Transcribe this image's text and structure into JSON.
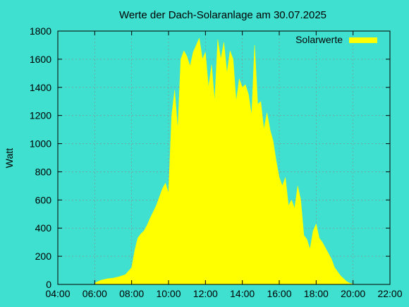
{
  "chart_data": {
    "type": "area",
    "title": "Werte der Dach-Solaranlage am 30.07.2025",
    "xlabel": "",
    "ylabel": "Watt",
    "xlim": [
      "04:00",
      "22:00"
    ],
    "ylim": [
      0,
      1800
    ],
    "x_ticks": [
      "04:00",
      "06:00",
      "08:00",
      "10:00",
      "12:00",
      "14:00",
      "16:00",
      "18:00",
      "20:00",
      "22:00"
    ],
    "y_ticks": [
      0,
      200,
      400,
      600,
      800,
      1000,
      1200,
      1400,
      1600,
      1800
    ],
    "grid": true,
    "legend_position": "top-right",
    "colors": {
      "background": "#40E0D0",
      "series": "#FFFF00",
      "frame": "#000000"
    },
    "series": [
      {
        "name": "Solarwerte",
        "x": [
          "06:00",
          "06:20",
          "06:40",
          "07:00",
          "07:20",
          "07:40",
          "08:00",
          "08:10",
          "08:20",
          "08:30",
          "08:40",
          "08:50",
          "09:00",
          "09:20",
          "09:40",
          "09:50",
          "10:00",
          "10:10",
          "10:20",
          "10:30",
          "10:40",
          "10:50",
          "11:00",
          "11:10",
          "11:20",
          "11:30",
          "11:40",
          "11:50",
          "12:00",
          "12:10",
          "12:20",
          "12:30",
          "12:40",
          "12:50",
          "13:00",
          "13:10",
          "13:20",
          "13:30",
          "13:40",
          "13:50",
          "14:00",
          "14:10",
          "14:20",
          "14:30",
          "14:40",
          "14:50",
          "15:00",
          "15:10",
          "15:20",
          "15:30",
          "15:40",
          "15:50",
          "16:00",
          "16:10",
          "16:20",
          "16:30",
          "16:40",
          "16:50",
          "17:00",
          "17:10",
          "17:20",
          "17:30",
          "17:40",
          "17:50",
          "18:00",
          "18:10",
          "18:20",
          "18:30",
          "18:40",
          "18:50",
          "19:00",
          "19:10",
          "19:20",
          "19:30",
          "19:40",
          "19:50",
          "20:00",
          "20:10"
        ],
        "values": [
          10,
          30,
          40,
          45,
          55,
          70,
          120,
          240,
          330,
          360,
          380,
          420,
          470,
          560,
          680,
          720,
          650,
          1200,
          1380,
          1100,
          1600,
          1660,
          1620,
          1550,
          1650,
          1700,
          1750,
          1600,
          1650,
          1400,
          1560,
          1300,
          1740,
          1600,
          1720,
          1500,
          1660,
          1600,
          1300,
          1460,
          1400,
          1420,
          1350,
          1200,
          1700,
          1280,
          1300,
          1100,
          1220,
          1100,
          1020,
          880,
          760,
          700,
          760,
          560,
          600,
          540,
          700,
          600,
          350,
          320,
          250,
          380,
          430,
          330,
          300,
          260,
          220,
          180,
          120,
          90,
          60,
          40,
          20,
          8,
          3,
          0
        ]
      }
    ]
  }
}
